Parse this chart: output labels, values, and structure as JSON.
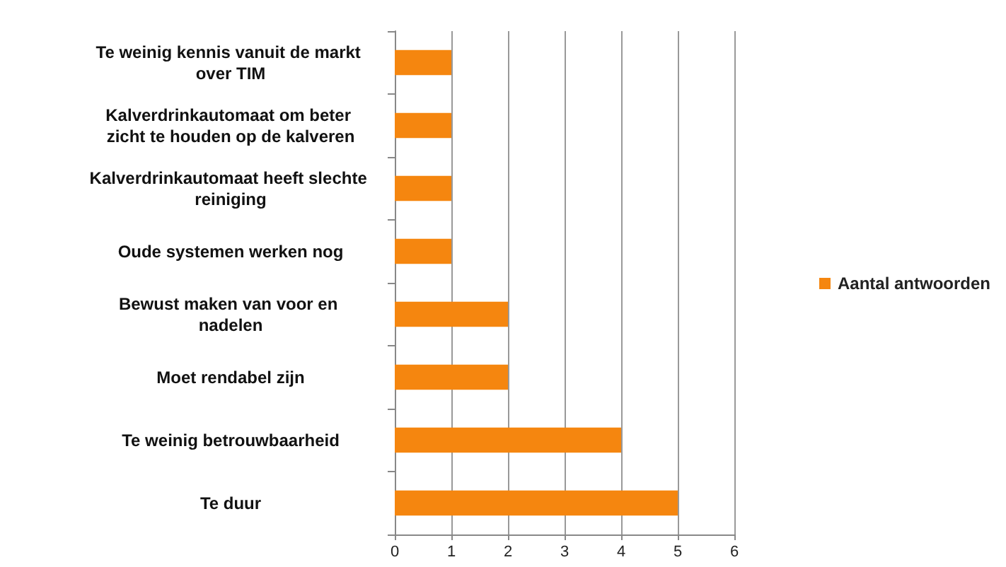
{
  "chart_data": {
    "type": "bar",
    "orientation": "horizontal",
    "categories": [
      "Te weinig kennis vanuit de markt over TIM",
      "Kalverdrinkautomaat om beter zicht te houden op de kalveren",
      "Kalverdrinkautomaat heeft slechte reiniging",
      "Oude systemen werken nog",
      "Bewust maken van voor en nadelen",
      "Moet rendabel zijn",
      "Te weinig betrouwbaarheid",
      "Te duur"
    ],
    "series": [
      {
        "name": "Aantal antwoorden",
        "color": "#f5860f",
        "values": [
          1,
          1,
          1,
          1,
          2,
          2,
          4,
          5
        ]
      }
    ],
    "xlim": [
      0,
      6
    ],
    "xticks": [
      0,
      1,
      2,
      3,
      4,
      5,
      6
    ],
    "grid": "x",
    "legend": "right"
  }
}
